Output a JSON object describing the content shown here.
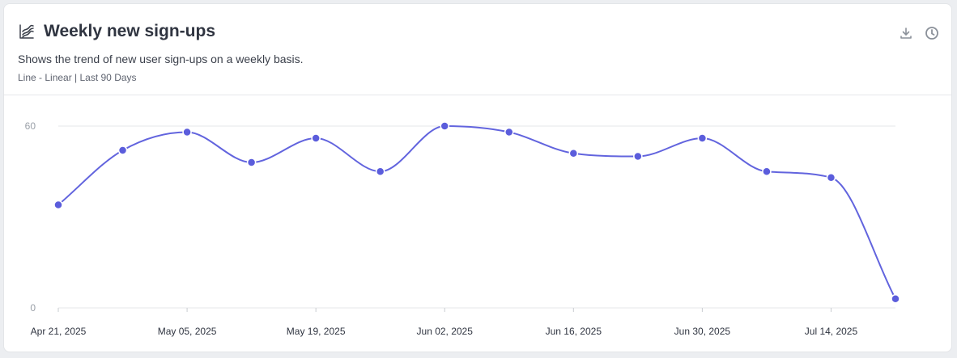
{
  "header": {
    "title": "Weekly new sign-ups",
    "description": "Shows the trend of new user sign-ups on a weekly basis.",
    "meta": "Line - Linear | Last 90 Days",
    "title_icon": "line-chart-icon",
    "tools": [
      {
        "name": "download-icon"
      },
      {
        "name": "history-icon"
      }
    ]
  },
  "colors": {
    "line": "#6264de",
    "point": "#5b5ddc",
    "grid": "#e6e7ea"
  },
  "chart_data": {
    "type": "line",
    "interpolation": "smooth",
    "x": [
      "Apr 21, 2025",
      "Apr 28, 2025",
      "May 05, 2025",
      "May 12, 2025",
      "May 19, 2025",
      "May 26, 2025",
      "Jun 02, 2025",
      "Jun 09, 2025",
      "Jun 16, 2025",
      "Jun 23, 2025",
      "Jun 30, 2025",
      "Jul 07, 2025",
      "Jul 14, 2025",
      "Jul 21, 2025"
    ],
    "series": [
      {
        "values": [
          34,
          52,
          58,
          48,
          56,
          45,
          60,
          58,
          51,
          50,
          56,
          45,
          43,
          3
        ]
      }
    ],
    "x_tick_labels": [
      "Apr 21, 2025",
      "May 05, 2025",
      "May 19, 2025",
      "Jun 02, 2025",
      "Jun 16, 2025",
      "Jun 30, 2025",
      "Jul 14, 2025"
    ],
    "y_ticks": [
      0,
      60
    ],
    "ylim": [
      0,
      60
    ],
    "grid": true,
    "legend": "none"
  }
}
